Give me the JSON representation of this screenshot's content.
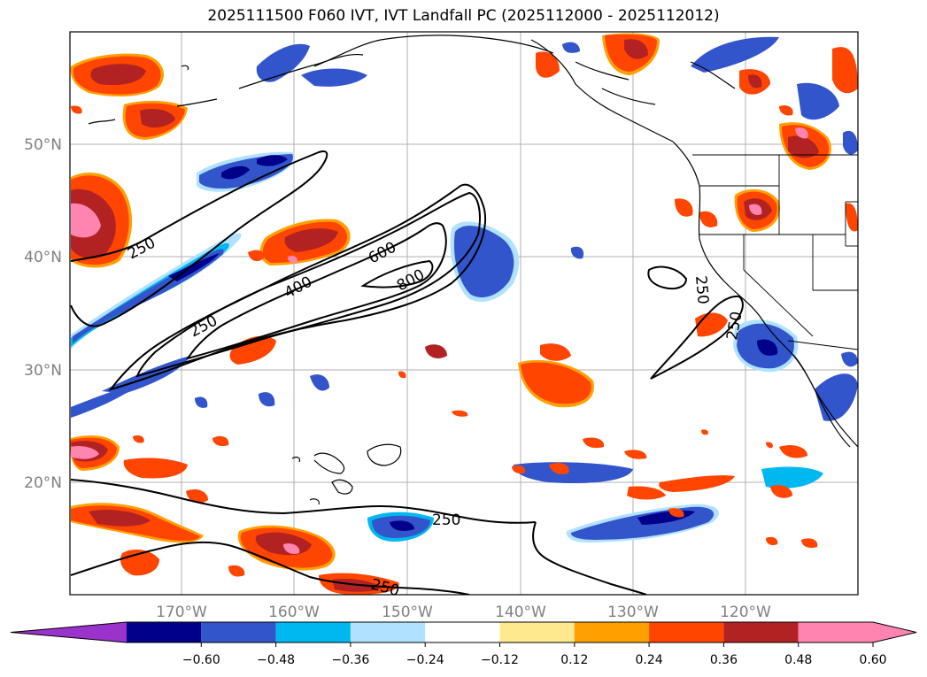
{
  "title": "2025111500 F060 IVT, IVT Landfall PC (2025112000 - 2025112012)",
  "map": {
    "lat_labels": [
      "50°N",
      "40°N",
      "30°N",
      "20°N"
    ],
    "lon_labels": [
      "170°W",
      "160°W",
      "150°W",
      "140°W",
      "130°W",
      "120°W"
    ],
    "contour_labels": [
      "250",
      "250",
      "600",
      "400",
      "800",
      "250",
      "250",
      "250",
      "250"
    ]
  },
  "colorbar": {
    "colors": [
      "#9933cc",
      "#00008b",
      "#3355cc",
      "#00b8f0",
      "#b0e2ff",
      "#ffffff",
      "#ffe98f",
      "#ff9f00",
      "#ff4500",
      "#b22222",
      "#ff85b0",
      "#ff85b0"
    ],
    "ticks": [
      "−0.60",
      "−0.48",
      "−0.36",
      "−0.24",
      "−0.12",
      "0.12",
      "0.24",
      "0.36",
      "0.48",
      "0.60"
    ]
  }
}
